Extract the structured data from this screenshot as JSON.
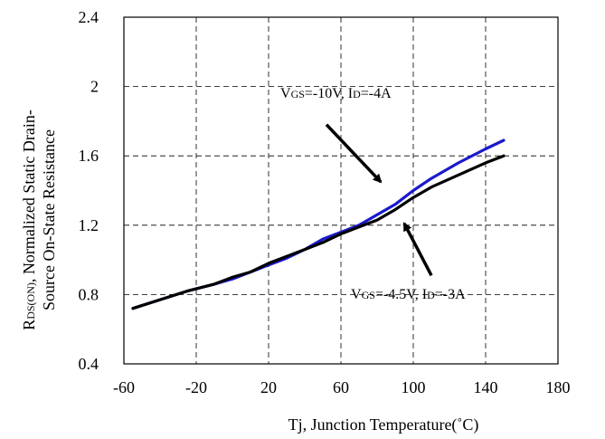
{
  "chart_data": {
    "type": "line",
    "xlabel": "Tj, Junction Temperature(˚C)",
    "ylabel_line1": "R",
    "ylabel_line1_sub": "DS(ON)",
    "ylabel_line1_rest": ", Normalized Static Drain-",
    "ylabel_line2": "Source On-State Resistance",
    "xlim": [
      -60,
      180
    ],
    "ylim": [
      0.4,
      2.4
    ],
    "x_ticks": [
      -60,
      -20,
      20,
      60,
      100,
      140,
      180
    ],
    "x_tick_labels": [
      "-60",
      "-20",
      "20",
      "60",
      "100",
      "140",
      "180"
    ],
    "y_ticks": [
      0.4,
      0.8,
      1.2,
      1.6,
      2.0,
      2.4
    ],
    "y_tick_labels": [
      "0.4",
      "0.8",
      "1.2",
      "1.6",
      "2",
      "2.4"
    ],
    "grid": true,
    "series": [
      {
        "color": "#1a1acc",
        "x": [
          -55,
          -40,
          -25,
          -10,
          0,
          10,
          20,
          30,
          40,
          50,
          60,
          70,
          80,
          90,
          100,
          110,
          125,
          140,
          150
        ],
        "y": [
          0.72,
          0.77,
          0.82,
          0.86,
          0.89,
          0.93,
          0.97,
          1.01,
          1.06,
          1.12,
          1.16,
          1.2,
          1.26,
          1.32,
          1.4,
          1.47,
          1.56,
          1.64,
          1.69
        ]
      },
      {
        "color": "#000000",
        "x": [
          -55,
          -40,
          -25,
          -10,
          0,
          10,
          20,
          30,
          40,
          50,
          60,
          70,
          80,
          90,
          100,
          110,
          125,
          140,
          150
        ],
        "y": [
          0.72,
          0.77,
          0.82,
          0.86,
          0.9,
          0.93,
          0.98,
          1.02,
          1.06,
          1.1,
          1.15,
          1.19,
          1.23,
          1.29,
          1.36,
          1.42,
          1.49,
          1.56,
          1.6
        ]
      }
    ],
    "annotations": [
      {
        "v_main": "V",
        "v_sub": "GS",
        "v_rest": "=-10V, I",
        "i_sub": "D",
        "i_rest": "=-4A",
        "arrow_from": [
          52,
          1.78
        ],
        "arrow_to": [
          82,
          1.45
        ]
      },
      {
        "v_main": "V",
        "v_sub": "GS",
        "v_rest": "=-4.5V, I",
        "i_sub": "D",
        "i_rest": "=-3A",
        "arrow_from": [
          110,
          0.91
        ],
        "arrow_to": [
          95,
          1.21
        ]
      }
    ]
  }
}
